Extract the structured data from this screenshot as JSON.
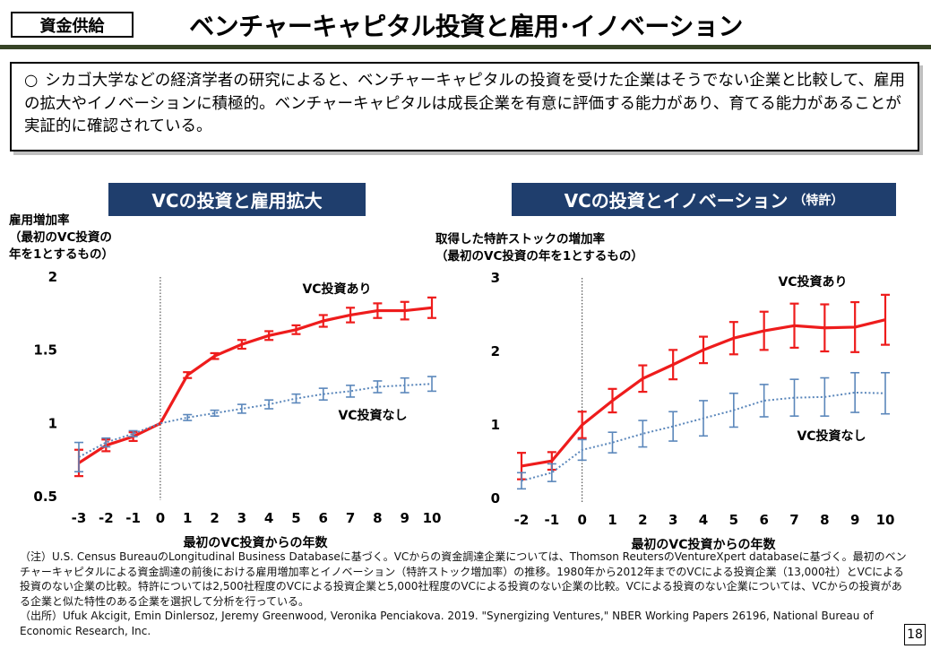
{
  "header": {
    "tag": "資金供給",
    "title": "ベンチャーキャピタル投資と雇用･イノベーション"
  },
  "summary": {
    "bullet": "○",
    "text": "シカゴ大学などの経済学者の研究によると、ベンチャーキャピタルの投資を受けた企業はそうでない企業と比較して、雇用の拡大やイノベーションに積極的。ベンチャーキャピタルは成長企業を有意に評価する能力があり、育てる能力があることが実証的に確認されている。"
  },
  "panels": {
    "left_title": "VCの投資と雇用拡大",
    "right_title_main": "VCの投資とイノベーション",
    "right_title_sub": "（特許）",
    "left_ylabel": [
      "雇用増加率",
      "（最初のVC投資の",
      "年を1とするもの）"
    ],
    "right_ylabel": [
      "取得した特許ストックの増加率",
      "（最初のVC投資の年を1とするもの）"
    ]
  },
  "chart_data": [
    {
      "type": "line",
      "title": "VCの投資と雇用拡大",
      "xlabel": "最初のVC投資からの年数",
      "ylabel": "雇用増加率（最初のVC投資の年を1とするもの）",
      "x": [
        -3,
        -2,
        -1,
        0,
        1,
        2,
        3,
        4,
        5,
        6,
        7,
        8,
        9,
        10
      ],
      "xlim": [
        -3,
        10
      ],
      "ylim": [
        0.5,
        2
      ],
      "yticks": [
        "0.5",
        "1",
        "1.5",
        "2"
      ],
      "event_line_x": 0,
      "series": [
        {
          "name": "VC投資あり",
          "color": "#ee1c1c",
          "style": "solid",
          "values": [
            0.73,
            0.85,
            0.91,
            1.0,
            1.33,
            1.46,
            1.54,
            1.6,
            1.64,
            1.7,
            1.74,
            1.77,
            1.77,
            1.79
          ],
          "err": [
            0.09,
            0.04,
            0.03,
            0.0,
            0.02,
            0.02,
            0.03,
            0.03,
            0.03,
            0.04,
            0.05,
            0.05,
            0.06,
            0.07
          ]
        },
        {
          "name": "VC投資なし",
          "color": "#5b87bb",
          "style": "dotted",
          "values": [
            0.77,
            0.87,
            0.93,
            1.0,
            1.04,
            1.07,
            1.1,
            1.13,
            1.17,
            1.2,
            1.22,
            1.25,
            1.26,
            1.27
          ],
          "err": [
            0.1,
            0.03,
            0.02,
            0.0,
            0.02,
            0.02,
            0.03,
            0.03,
            0.03,
            0.04,
            0.04,
            0.04,
            0.05,
            0.05
          ]
        }
      ]
    },
    {
      "type": "line",
      "title": "VCの投資とイノベーション（特許）",
      "xlabel": "最初のVC投資からの年数",
      "ylabel": "取得した特許ストックの増加率（最初のVC投資の年を1とするもの）",
      "x": [
        -2,
        -1,
        0,
        1,
        2,
        3,
        4,
        5,
        6,
        7,
        8,
        9,
        10
      ],
      "xlim": [
        -2,
        10
      ],
      "ylim": [
        0,
        3
      ],
      "yticks": [
        "0",
        "1",
        "2",
        "3"
      ],
      "event_line_x": 0,
      "series": [
        {
          "name": "VC投資あり",
          "color": "#ee1c1c",
          "style": "solid",
          "values": [
            0.44,
            0.51,
            1.0,
            1.33,
            1.63,
            1.82,
            2.02,
            2.18,
            2.28,
            2.35,
            2.32,
            2.33,
            2.43
          ],
          "err": [
            0.18,
            0.12,
            0.18,
            0.16,
            0.18,
            0.2,
            0.18,
            0.22,
            0.26,
            0.3,
            0.32,
            0.34,
            0.34
          ]
        },
        {
          "name": "VC投資なし",
          "color": "#5b87bb",
          "style": "dotted",
          "values": [
            0.24,
            0.35,
            0.66,
            0.76,
            0.88,
            0.98,
            1.09,
            1.2,
            1.33,
            1.37,
            1.38,
            1.44,
            1.43
          ],
          "err": [
            0.11,
            0.12,
            0.14,
            0.14,
            0.18,
            0.2,
            0.24,
            0.23,
            0.22,
            0.25,
            0.26,
            0.27,
            0.28
          ]
        }
      ]
    }
  ],
  "notes": [
    "（注）U.S. Census BureauのLongitudinal Business Databaseに基づく。VCからの資金調達企業については、Thomson ReutersのVentureXpert databaseに基づく。最初のベンチャーキャピタルによる資金調達の前後における雇用増加率とイノベーション（特許ストック増加率）の推移。1980年から2012年までのVCによる投資企業（13,000社）とVCによる投資のない企業の比較。特許については2,500社程度のVCによる投資企業と5,000社程度のVCによる投資のない企業の比較。VCによる投資のない企業については、VCからの投資がある企業と似た特性のある企業を選択して分析を行っている。",
    "（出所）Ufuk Akcigit, Emin Dinlersoz, Jeremy Greenwood, Veronika Penciakova. 2019. \"Synergizing Ventures,\" NBER Working Papers 26196, National Bureau of Economic Research, Inc."
  ],
  "page_number": "18"
}
